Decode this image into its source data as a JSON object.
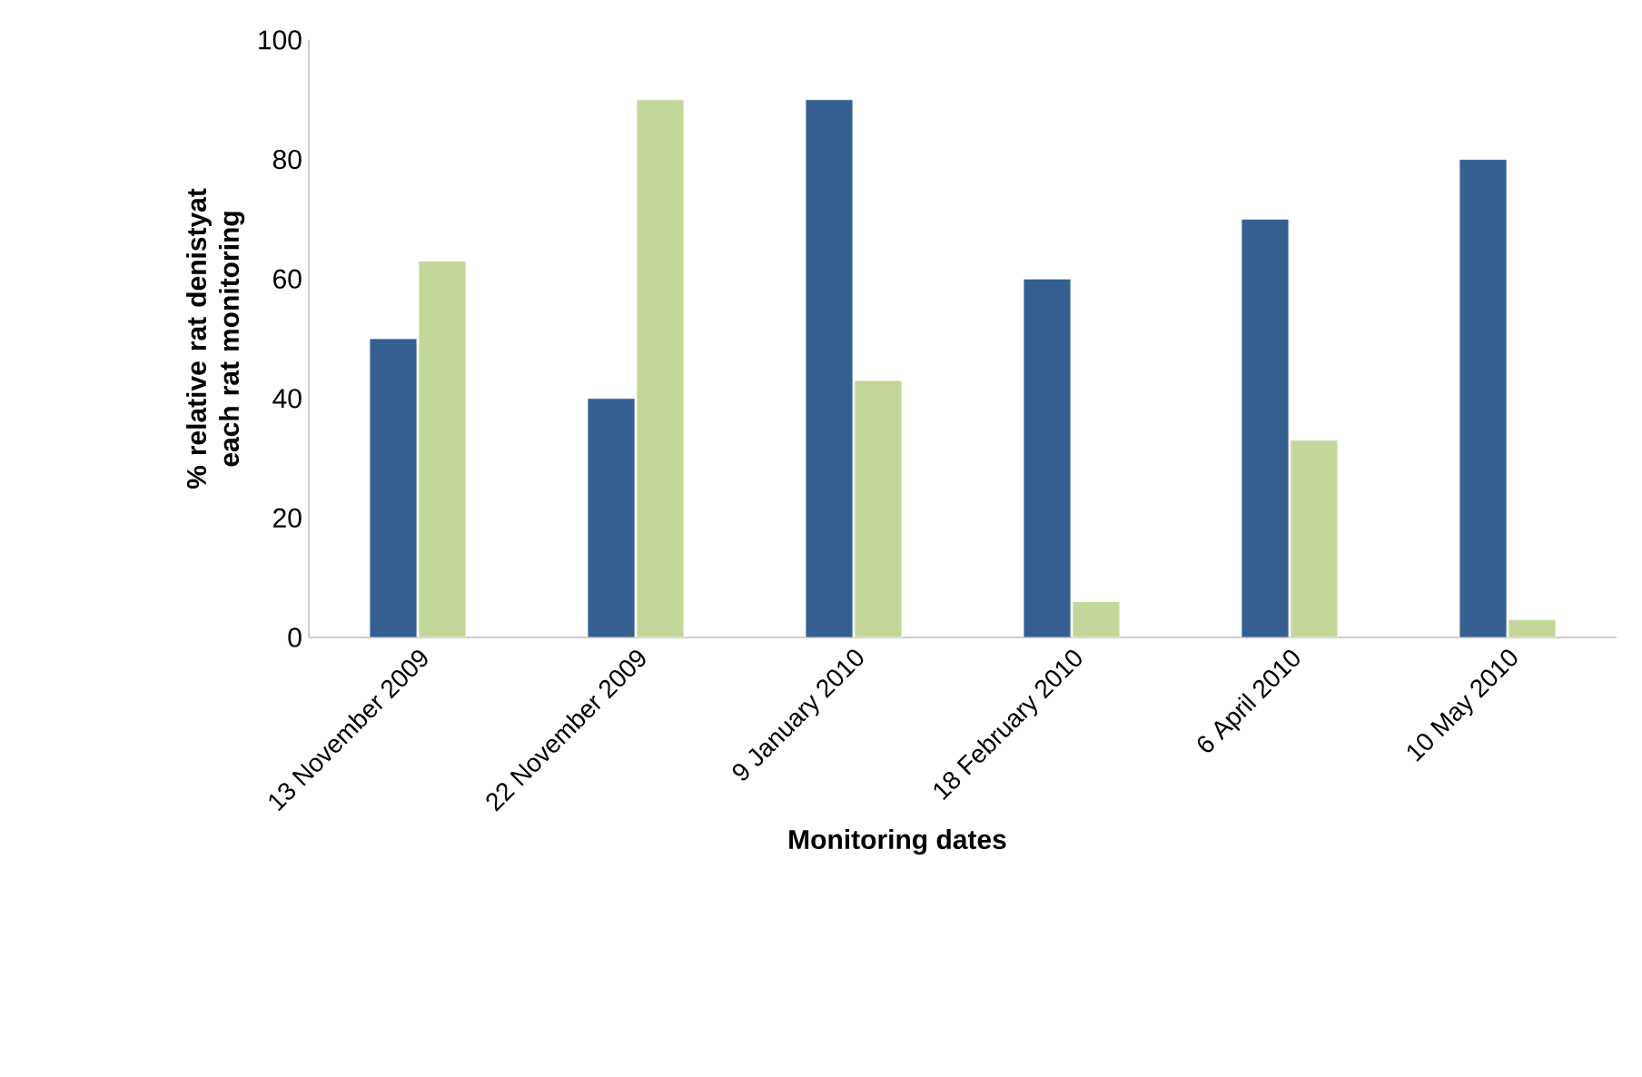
{
  "chart_data": {
    "type": "bar",
    "xlabel": "Monitoring dates",
    "ylabel": "% relative rat denistyat each rat monitoring",
    "categories": [
      "13 November 2009",
      "22 November 2009",
      "9 January 2010",
      "18 February 2010",
      "6 April 2010",
      "10 May 2010"
    ],
    "series": [
      {
        "color": "#365f91",
        "values": [
          50,
          40,
          90,
          60,
          70,
          80
        ]
      },
      {
        "color": "#c4d79b",
        "values": [
          63,
          90,
          43,
          6,
          33,
          3
        ]
      }
    ],
    "ylim": [
      0,
      100
    ],
    "yticks": [
      0,
      20,
      40,
      60,
      80,
      100
    ],
    "grid": false
  }
}
